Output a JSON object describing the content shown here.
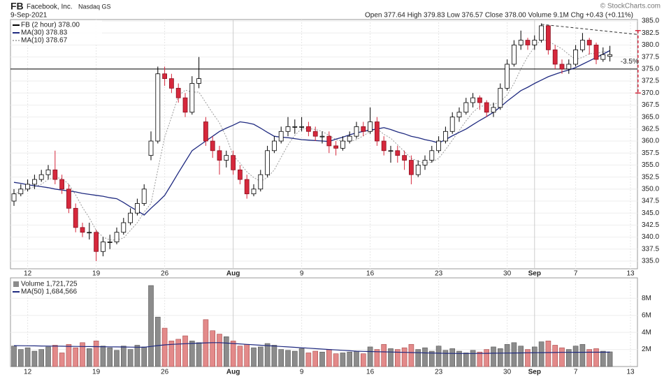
{
  "chart_data": {
    "type": "candlestick",
    "symbol": "FB",
    "company": "Facebook, Inc.",
    "exchange": "Nasdaq GS",
    "date": "9-Sep-2021",
    "quote": "Open 377.64  High 379.83  Low 376.57  Close 378.00  Volume 9.1M  Chg +0.43 (+0.11%)",
    "credit": "© StockCharts.com",
    "price_label": "FB (2 hour) 378.00",
    "up_color": "#ffffff",
    "down_color": "#d6283c",
    "open": [
      347.5,
      349,
      350,
      351,
      352,
      353,
      354,
      352,
      350,
      346,
      342,
      341,
      341,
      337,
      339,
      339,
      341,
      343,
      345,
      347,
      357,
      360,
      374,
      373,
      371,
      369,
      366,
      372,
      364,
      360,
      358,
      356,
      357,
      354,
      352,
      349,
      350,
      353,
      358,
      360,
      362,
      363,
      363,
      363,
      362,
      361,
      361,
      359,
      358.5,
      360,
      361,
      363,
      362,
      364,
      360,
      358,
      358,
      357,
      356,
      353,
      355,
      356,
      358,
      360,
      362,
      365,
      366,
      368,
      369,
      368,
      366,
      367,
      371,
      376,
      380,
      381,
      380,
      381,
      384,
      379,
      376,
      375,
      376,
      379,
      381,
      380,
      377,
      377.64
    ],
    "high": [
      350,
      351,
      352,
      353,
      354,
      355,
      358,
      353,
      351,
      347,
      343,
      343,
      341.5,
      340,
      340.5,
      342,
      344,
      346,
      348,
      351,
      362,
      375.5,
      375.5,
      374,
      372,
      370,
      373.5,
      377.5,
      365,
      361,
      359,
      358,
      358,
      355,
      353,
      351,
      354,
      359,
      361,
      363,
      365,
      364.5,
      365,
      364,
      363,
      362,
      362,
      360,
      361,
      362,
      364,
      364,
      367,
      365,
      361,
      359,
      359,
      358,
      357,
      356,
      357,
      359,
      361,
      363,
      366,
      367,
      369,
      370,
      369.5,
      368.5,
      368,
      372,
      377,
      381,
      383,
      381.5,
      382,
      384.5,
      384,
      380,
      377,
      377,
      380,
      382.5,
      381.5,
      380.5,
      379.5,
      379.83
    ],
    "low": [
      346.5,
      348.5,
      349.5,
      350,
      351.5,
      352,
      351,
      349,
      345,
      341,
      340,
      339.5,
      335,
      336,
      337.5,
      338.5,
      340.5,
      342.5,
      344.5,
      346.5,
      356,
      359.5,
      371.5,
      370,
      368,
      365,
      365.5,
      371,
      359,
      356.5,
      353,
      354.5,
      353,
      351,
      348,
      348.5,
      349.5,
      352.5,
      357.5,
      359.5,
      361,
      361.5,
      362,
      361,
      360,
      359.5,
      357.5,
      357,
      358,
      359.5,
      360.5,
      361,
      361.5,
      359,
      357,
      355.5,
      355.5,
      354,
      351,
      352.5,
      354,
      355.5,
      357.5,
      359.5,
      361.5,
      364,
      365.5,
      367,
      366.5,
      365,
      365,
      366.5,
      370.5,
      375.5,
      379,
      379,
      379,
      380.5,
      378,
      375,
      374,
      374,
      375.5,
      378.5,
      378,
      376,
      376.5,
      376.57
    ],
    "close": [
      349,
      350,
      351,
      352,
      353,
      354,
      352,
      350,
      346,
      342,
      341,
      341,
      337,
      339,
      339,
      341,
      343,
      345,
      347,
      350,
      360,
      374,
      373,
      371,
      369,
      366,
      372,
      373,
      360,
      358,
      356,
      357,
      354,
      352,
      349,
      350,
      353,
      358,
      360,
      362,
      363,
      363,
      363,
      362,
      361,
      361,
      359,
      358.5,
      360,
      361,
      363,
      362,
      364,
      360,
      358,
      358,
      357,
      356,
      353,
      355,
      356,
      358,
      360,
      362,
      365,
      366,
      368,
      369,
      368,
      366,
      367,
      371,
      376,
      380,
      381,
      380,
      381,
      384,
      379,
      376,
      375,
      376,
      379,
      381,
      380,
      377,
      378,
      378
    ],
    "ylim": [
      333.4,
      385.3
    ],
    "yticks": [
      {
        "value": 335,
        "label": "335.0"
      },
      {
        "value": 337.5,
        "label": "337.5"
      },
      {
        "value": 340,
        "label": "340.0"
      },
      {
        "value": 342.5,
        "label": "342.5"
      },
      {
        "value": 345,
        "label": "345.0"
      },
      {
        "value": 347.5,
        "label": "347.5"
      },
      {
        "value": 350,
        "label": "350.0"
      },
      {
        "value": 352.5,
        "label": "352.5"
      },
      {
        "value": 355,
        "label": "355.0"
      },
      {
        "value": 357.5,
        "label": "357.5"
      },
      {
        "value": 360,
        "label": "360.0"
      },
      {
        "value": 362.5,
        "label": "362.5"
      },
      {
        "value": 365,
        "label": "365.0"
      },
      {
        "value": 367.5,
        "label": "367.5"
      },
      {
        "value": 370,
        "label": "370.0"
      },
      {
        "value": 372.5,
        "label": "372.5"
      },
      {
        "value": 375,
        "label": "375.0"
      },
      {
        "value": 377.5,
        "label": "377.5"
      },
      {
        "value": 380,
        "label": "380.0"
      },
      {
        "value": 382.5,
        "label": "382.5"
      },
      {
        "value": 385,
        "label": "385.0"
      }
    ],
    "xticks": [
      {
        "value": 2,
        "label": "12"
      },
      {
        "value": 12,
        "label": "19"
      },
      {
        "value": 22,
        "label": "26"
      },
      {
        "value": 32,
        "label": "Aug"
      },
      {
        "value": 42,
        "label": "9"
      },
      {
        "value": 52,
        "label": "16"
      },
      {
        "value": 62,
        "label": "23"
      },
      {
        "value": 72,
        "label": "30"
      },
      {
        "value": 76,
        "label": "Sep"
      },
      {
        "value": 82,
        "label": "7"
      },
      {
        "value": 90,
        "label": "13"
      }
    ],
    "ma30": {
      "name": "MA(30) 378.83",
      "color": "#1f2a80",
      "values": [
        351.4,
        351.2,
        350.9,
        350.7,
        350.5,
        350.3,
        350.0,
        349.8,
        349.6,
        349.4,
        349.1,
        348.9,
        348.7,
        348.5,
        348.2,
        348.0,
        347.2,
        346.3,
        345.5,
        344.6,
        346.0,
        347.3,
        348.7,
        351.0,
        353.4,
        355.7,
        358.0,
        359.0,
        360.0,
        361.0,
        362.0,
        362.7,
        363.3,
        364.0,
        363.8,
        363.5,
        362.7,
        361.8,
        361.0,
        360.8,
        360.7,
        360.5,
        360.3,
        360.2,
        360.1,
        360.0,
        359.9,
        360.4,
        360.8,
        361.3,
        361.7,
        362.0,
        362.3,
        362.5,
        362.8,
        362.4,
        361.9,
        361.5,
        361.0,
        360.7,
        360.3,
        360.0,
        359.6,
        360.3,
        361.1,
        361.8,
        362.5,
        363.4,
        364.3,
        365.1,
        366.0,
        367.1,
        368.3,
        369.4,
        370.5,
        371.2,
        372.0,
        372.7,
        373.4,
        373.9,
        374.4,
        374.8,
        375.3,
        376.0,
        376.7,
        377.4,
        378.1,
        378.83
      ]
    },
    "ma10": {
      "name": "MA(10) 378.67",
      "color": "#9a9a9a",
      "values": [
        349,
        349.5,
        350,
        350.5,
        351,
        352,
        352.4,
        352.2,
        351,
        348.8,
        346.2,
        344,
        341.4,
        340,
        339.4,
        339.4,
        339.8,
        341.4,
        343,
        345.2,
        347,
        354,
        360.8,
        365,
        369.4,
        370.6,
        370.2,
        370.2,
        368,
        365.8,
        363.8,
        360.8,
        357,
        355.4,
        353.6,
        352.4,
        351.6,
        352.4,
        354,
        356.6,
        359.2,
        361.2,
        362.6,
        362.6,
        362.4,
        362,
        361.2,
        360.3,
        359.9,
        359.9,
        360.3,
        361.1,
        362,
        362.6,
        361.4,
        360.6,
        359.2,
        357.8,
        356.4,
        355.8,
        355.4,
        355.6,
        356.4,
        358.2,
        360.2,
        362.2,
        364.2,
        366,
        367.2,
        367.4,
        367.6,
        368.2,
        369.6,
        372,
        375,
        377.6,
        379.6,
        381.2,
        380.8,
        380,
        379.2,
        378,
        377,
        377.4,
        378.2,
        378.2,
        378.6,
        378.67
      ]
    },
    "volume": {
      "name": "Volume 1,721,725",
      "up_color": "#8c8c8c",
      "down_color": "#e38a8a",
      "values": [
        2.4,
        2.0,
        2.2,
        1.8,
        2.0,
        2.3,
        2.5,
        1.6,
        2.6,
        2.2,
        2.8,
        2.1,
        3.0,
        2.4,
        2.2,
        1.9,
        2.4,
        2.0,
        2.5,
        2.3,
        9.5,
        5.8,
        4.5,
        3.0,
        3.2,
        3.6,
        3.0,
        2.8,
        5.5,
        4.2,
        3.8,
        3.5,
        3.0,
        2.4,
        2.6,
        2.2,
        2.3,
        2.7,
        2.5,
        2.0,
        1.9,
        1.8,
        2.1,
        1.6,
        1.8,
        1.7,
        2.0,
        1.5,
        1.6,
        1.7,
        1.8,
        1.5,
        2.3,
        2.0,
        2.6,
        2.1,
        2.0,
        2.2,
        2.6,
        2.0,
        2.2,
        1.8,
        2.4,
        1.9,
        2.1,
        1.8,
        1.6,
        1.9,
        1.7,
        2.0,
        2.3,
        2.1,
        2.6,
        2.8,
        2.4,
        2.0,
        2.3,
        2.9,
        3.0,
        2.5,
        2.2,
        2.0,
        2.4,
        2.6,
        2.0,
        2.1,
        1.8,
        1.721725
      ],
      "ylim": [
        0,
        10.4
      ],
      "yticks": [
        {
          "value": 2,
          "label": "2M"
        },
        {
          "value": 4,
          "label": "4M"
        },
        {
          "value": 6,
          "label": "6M"
        },
        {
          "value": 8,
          "label": "8M"
        }
      ]
    },
    "vol_ma": {
      "name": "MA(50) 1,684,566",
      "color": "#1f2a80",
      "values": [
        2.45,
        2.44,
        2.43,
        2.42,
        2.41,
        2.4,
        2.39,
        2.38,
        2.37,
        2.36,
        2.35,
        2.34,
        2.33,
        2.32,
        2.31,
        2.3,
        2.29,
        2.28,
        2.27,
        2.26,
        2.36,
        2.46,
        2.54,
        2.6,
        2.64,
        2.68,
        2.71,
        2.74,
        2.78,
        2.8,
        2.8,
        2.75,
        2.7,
        2.65,
        2.6,
        2.55,
        2.5,
        2.45,
        2.4,
        2.35,
        2.3,
        2.25,
        2.2,
        2.15,
        2.1,
        2.05,
        2.0,
        1.95,
        1.9,
        1.85,
        1.8,
        1.78,
        1.76,
        1.74,
        1.72,
        1.7,
        1.68,
        1.66,
        1.64,
        1.62,
        1.6,
        1.58,
        1.56,
        1.55,
        1.54,
        1.53,
        1.53,
        1.53,
        1.54,
        1.55,
        1.56,
        1.57,
        1.58,
        1.59,
        1.6,
        1.61,
        1.62,
        1.63,
        1.64,
        1.65,
        1.66,
        1.66,
        1.67,
        1.67,
        1.68,
        1.68,
        1.68,
        1.684566
      ]
    },
    "resistance": 375,
    "trend_line": {
      "x": [
        77,
        91
      ],
      "y": [
        384.3,
        382.2
      ]
    },
    "measure": {
      "from": 383,
      "to": 370,
      "label": "-3.5%",
      "color": "#d6283c"
    }
  }
}
